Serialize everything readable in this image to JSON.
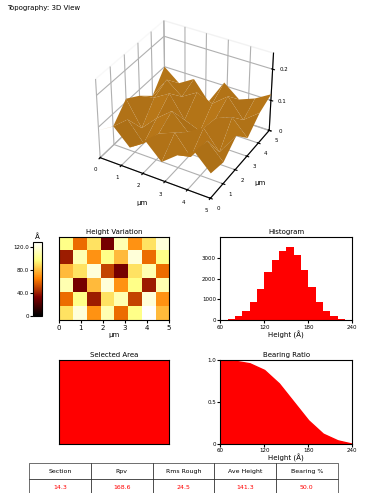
{
  "header": "Topography: 3D View",
  "chart_data": [
    {
      "type": "surface",
      "x_label": "µm",
      "y_label": "µm",
      "x": [
        0,
        0.71,
        1.43,
        2.14,
        2.86,
        3.57,
        4.29,
        5.0
      ],
      "y": [
        0,
        1,
        2,
        3,
        4,
        5
      ],
      "z": [
        [
          0.09,
          0.12,
          0.07,
          0.11,
          0.06,
          0.1,
          0.13,
          0.08
        ],
        [
          0.06,
          0.1,
          0.04,
          0.09,
          0.11,
          0.05,
          0.12,
          0.07
        ],
        [
          0.11,
          0.03,
          0.08,
          0.12,
          0.07,
          0.1,
          0.04,
          0.11
        ],
        [
          0.08,
          0.09,
          0.12,
          0.05,
          0.03,
          0.09,
          0.11,
          0.06
        ],
        [
          0.04,
          0.11,
          0.07,
          0.1,
          0.08,
          0.12,
          0.06,
          0.1
        ],
        [
          0.1,
          0.06,
          0.09,
          0.03,
          0.11,
          0.07,
          0.09,
          0.12
        ]
      ],
      "color": "#e8961e",
      "xlim": [
        0,
        5
      ],
      "ylim": [
        0,
        5
      ],
      "zlim": [
        0,
        0.25
      ],
      "xticks": [
        0,
        1,
        2,
        3,
        4,
        5
      ],
      "yticks": [
        0,
        1,
        2,
        3,
        4,
        5
      ],
      "zticks": [
        0,
        0.1,
        0.2
      ]
    },
    {
      "type": "heatmap",
      "title": "Height Variation",
      "x_label": "µm",
      "cells": [
        [
          90,
          120,
          70,
          110,
          60,
          100,
          130,
          80
        ],
        [
          60,
          100,
          40,
          90,
          110,
          50,
          120,
          70
        ],
        [
          110,
          30,
          80,
          120,
          70,
          100,
          40,
          110
        ],
        [
          80,
          90,
          120,
          50,
          30,
          90,
          110,
          60
        ],
        [
          40,
          110,
          70,
          100,
          80,
          120,
          60,
          100
        ],
        [
          100,
          60,
          90,
          30,
          110,
          70,
          90,
          120
        ]
      ],
      "xlim": [
        0,
        5
      ],
      "ylim": [
        0,
        5
      ],
      "xticks": [
        0,
        1,
        2,
        3,
        4,
        5
      ],
      "tick_labels": "x",
      "colorbar_label": "Å",
      "colorbar_range": [
        0,
        130
      ],
      "colorbar_ticks": [
        0,
        {
          "value": 40,
          "label": "40.0"
        },
        {
          "value": 80,
          "label": "80.0"
        },
        {
          "value": 120,
          "label": "120.0"
        }
      ],
      "color": "afmhot"
    },
    {
      "type": "histogram",
      "title": "Histogram",
      "x_label": "Height (Å)",
      "bins": [
        60,
        70,
        80,
        90,
        100,
        110,
        120,
        130,
        140,
        150,
        160,
        170,
        180,
        190,
        200,
        210,
        220,
        230,
        240
      ],
      "counts": [
        20,
        80,
        200,
        450,
        900,
        1500,
        2300,
        2900,
        3300,
        3500,
        3100,
        2400,
        1600,
        900,
        450,
        200,
        80,
        20
      ],
      "color": "#ff0000",
      "xlim": [
        60,
        240
      ],
      "ylim": [
        0,
        4000
      ],
      "xticks": [
        60,
        120,
        180,
        240
      ],
      "yticks": [
        0,
        1000,
        2000,
        3000
      ]
    },
    {
      "type": "selection",
      "title": "Selected Area",
      "color": "#ff0000",
      "tick_labels": false
    },
    {
      "type": "area",
      "title": "Bearing Ratio",
      "x_label": "Height (Å)",
      "x": [
        60,
        80,
        100,
        120,
        140,
        160,
        180,
        200,
        220,
        240
      ],
      "values": [
        1.0,
        0.99,
        0.96,
        0.88,
        0.72,
        0.5,
        0.28,
        0.12,
        0.04,
        0.0
      ],
      "color": "#ff0000",
      "xlim": [
        60,
        240
      ],
      "ylim": [
        0,
        1
      ],
      "xticks": [
        60,
        120,
        180,
        240
      ],
      "yticks": [
        0,
        0.5,
        {
          "value": 1,
          "label": "1.0"
        }
      ]
    }
  ],
  "table": {
    "header": [
      "Section",
      "Rpv",
      "Rms Rough",
      "Ave Height",
      "Bearing %"
    ],
    "rows": [
      [
        "14.3",
        "168.6",
        "24.5",
        "141.3",
        "50.0"
      ]
    ],
    "color": "#ff0000"
  }
}
